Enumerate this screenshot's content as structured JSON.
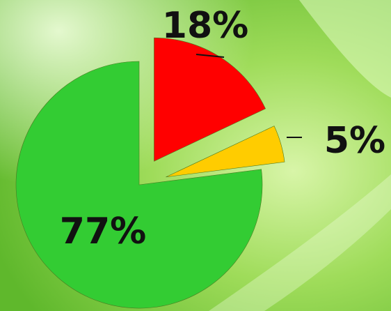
{
  "chart_data": {
    "type": "pie",
    "values": [
      18,
      5,
      77
    ],
    "value_labels": [
      "18%",
      "5%",
      "77%"
    ],
    "colors": [
      "#ff0000",
      "#ffcc00",
      "#33cc33"
    ]
  }
}
